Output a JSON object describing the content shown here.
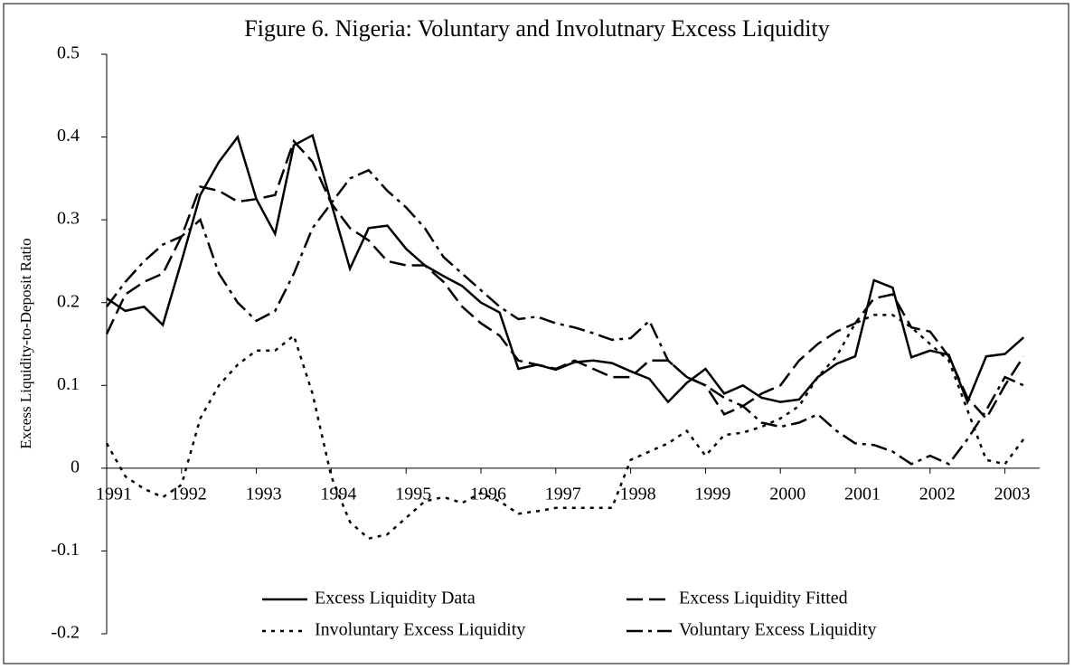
{
  "chart_data": {
    "type": "line",
    "title": "Figure 6. Nigeria: Voluntary and Involutnary Excess Liquidity",
    "y_label": "Excess Liquidity-to-Deposit Ratio",
    "categories": [
      "1991",
      null,
      null,
      null,
      "1992",
      null,
      null,
      null,
      "1993",
      null,
      null,
      null,
      "1994",
      null,
      null,
      null,
      "1995",
      null,
      null,
      null,
      "1996",
      null,
      null,
      null,
      "1997",
      null,
      null,
      null,
      "1998",
      null,
      null,
      null,
      "1999",
      null,
      null,
      null,
      "2000",
      null,
      null,
      null,
      "2001",
      null,
      null,
      null,
      "2002",
      null,
      null,
      null,
      "2003",
      null
    ],
    "ylim": [
      -0.2,
      0.5
    ],
    "yticks": [
      -0.2,
      -0.1,
      0,
      0.1,
      0.2,
      0.3,
      0.4,
      0.5
    ],
    "grid": false,
    "legend": "bottom",
    "series": [
      {
        "name": "Excess Liquidity Data",
        "color": "#000000",
        "style": "solid",
        "values": [
          0.205,
          0.19,
          0.195,
          0.173,
          0.25,
          0.33,
          0.37,
          0.4,
          0.325,
          0.283,
          0.39,
          0.402,
          0.32,
          0.241,
          0.29,
          0.293,
          0.265,
          0.245,
          0.232,
          0.22,
          0.2,
          0.188,
          0.12,
          0.125,
          0.119,
          0.128,
          0.13,
          0.127,
          0.117,
          0.108,
          0.08,
          0.103,
          0.12,
          0.09,
          0.1,
          0.085,
          0.08,
          0.083,
          0.11,
          0.126,
          0.135,
          0.227,
          0.218,
          0.134,
          0.142,
          0.137,
          0.08,
          0.135,
          0.138,
          0.158
        ]
      },
      {
        "name": "Excess Liquidity Fitted",
        "color": "#000000",
        "style": "dashed",
        "values": [
          0.162,
          0.21,
          0.225,
          0.235,
          0.28,
          0.34,
          0.335,
          0.322,
          0.325,
          0.33,
          0.395,
          0.37,
          0.32,
          0.29,
          0.275,
          0.25,
          0.245,
          0.245,
          0.225,
          0.195,
          0.175,
          0.16,
          0.13,
          0.125,
          0.12,
          0.13,
          0.12,
          0.11,
          0.11,
          0.13,
          0.13,
          0.11,
          0.1,
          0.065,
          0.075,
          0.09,
          0.1,
          0.13,
          0.15,
          0.165,
          0.175,
          0.205,
          0.21,
          0.17,
          0.165,
          0.135,
          0.085,
          0.06,
          0.1,
          0.135
        ]
      },
      {
        "name": "Involuntary Excess Liquidity",
        "color": "#000000",
        "style": "dotted",
        "values": [
          0.03,
          -0.01,
          -0.025,
          -0.035,
          -0.02,
          0.06,
          0.1,
          0.125,
          0.142,
          0.142,
          0.16,
          0.09,
          -0.01,
          -0.065,
          -0.085,
          -0.08,
          -0.06,
          -0.04,
          -0.035,
          -0.042,
          -0.03,
          -0.04,
          -0.055,
          -0.052,
          -0.048,
          -0.048,
          -0.048,
          -0.048,
          0.01,
          0.02,
          0.03,
          0.045,
          0.015,
          0.04,
          0.043,
          0.05,
          0.06,
          0.075,
          0.11,
          0.135,
          0.175,
          0.185,
          0.185,
          0.17,
          0.15,
          0.13,
          0.07,
          0.01,
          0.005,
          0.035
        ]
      },
      {
        "name": "Voluntary Excess Liquidity",
        "color": "#000000",
        "style": "dashdot",
        "values": [
          0.195,
          0.225,
          0.25,
          0.27,
          0.28,
          0.3,
          0.235,
          0.2,
          0.178,
          0.19,
          0.235,
          0.29,
          0.32,
          0.35,
          0.36,
          0.335,
          0.315,
          0.29,
          0.255,
          0.235,
          0.215,
          0.195,
          0.18,
          0.183,
          0.175,
          0.17,
          0.163,
          0.155,
          0.157,
          0.178,
          0.13,
          0.11,
          0.1,
          0.085,
          0.075,
          0.055,
          0.05,
          0.055,
          0.065,
          0.045,
          0.03,
          0.028,
          0.02,
          0.005,
          0.015,
          0.005,
          0.035,
          0.07,
          0.11,
          0.1
        ]
      }
    ]
  }
}
